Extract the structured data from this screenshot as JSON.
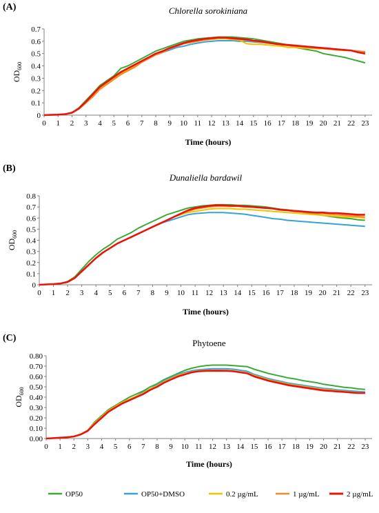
{
  "figure": {
    "colors": {
      "OP50": "#3aaa35",
      "OP50+DMSO": "#36a2dc",
      "0.2 µg/mL": "#f2c200",
      "1 µg/mL": "#f58a2a",
      "2 µg/mL": "#e8140c"
    },
    "legend": [
      "OP50",
      "OP50+DMSO",
      "0.2 µg/mL",
      "1 µg/mL",
      "2 µg/mL"
    ]
  },
  "chart_data": [
    {
      "type": "line",
      "panel": "(A)",
      "title": "Chlorella sorokiniana",
      "xlabel": "Time (hours)",
      "ylabel": "OD600",
      "x_ticks": [
        0,
        1,
        2,
        3,
        4,
        5,
        6,
        7,
        8,
        9,
        10,
        11,
        12,
        13,
        14,
        15,
        16,
        17,
        18,
        19,
        20,
        21,
        22,
        23
      ],
      "y_ticks": [
        "0",
        "0.1",
        "0.2",
        "0.3",
        "0.4",
        "0.5",
        "0.6",
        "0.7"
      ],
      "xlim": [
        0,
        23.5
      ],
      "ylim": [
        0,
        0.7
      ],
      "x": [
        0,
        0.5,
        1,
        1.5,
        2,
        2.5,
        3,
        3.5,
        4,
        4.5,
        5,
        5.5,
        6,
        6.5,
        7,
        7.5,
        8,
        8.5,
        9,
        9.5,
        10,
        10.5,
        11,
        11.5,
        12,
        12.5,
        13,
        13.5,
        14,
        14.5,
        15,
        15.5,
        16,
        16.5,
        17,
        17.5,
        18,
        18.5,
        19,
        19.5,
        20,
        20.5,
        21,
        21.5,
        22,
        22.5,
        23
      ],
      "series": [
        {
          "name": "OP50",
          "values": [
            0,
            0.002,
            0.004,
            0.008,
            0.02,
            0.06,
            0.12,
            0.18,
            0.24,
            0.28,
            0.32,
            0.38,
            0.4,
            0.43,
            0.46,
            0.49,
            0.52,
            0.54,
            0.56,
            0.58,
            0.6,
            0.61,
            0.62,
            0.625,
            0.63,
            0.635,
            0.635,
            0.635,
            0.63,
            0.625,
            0.62,
            0.61,
            0.6,
            0.59,
            0.58,
            0.57,
            0.55,
            0.54,
            0.53,
            0.52,
            0.5,
            0.49,
            0.48,
            0.47,
            0.455,
            0.44,
            0.425
          ]
        },
        {
          "name": "OP50+DMSO",
          "values": [
            0,
            0.002,
            0.004,
            0.008,
            0.02,
            0.055,
            0.11,
            0.17,
            0.23,
            0.27,
            0.31,
            0.35,
            0.37,
            0.4,
            0.43,
            0.46,
            0.49,
            0.51,
            0.53,
            0.55,
            0.56,
            0.575,
            0.585,
            0.595,
            0.6,
            0.605,
            0.605,
            0.605,
            0.6,
            0.6,
            0.595,
            0.59,
            0.585,
            0.58,
            0.575,
            0.57,
            0.565,
            0.56,
            0.555,
            0.55,
            0.545,
            0.54,
            0.535,
            0.53,
            0.525,
            0.52,
            0.515
          ]
        },
        {
          "name": "0.2 µg/mL",
          "values": [
            0,
            0.002,
            0.004,
            0.008,
            0.018,
            0.05,
            0.1,
            0.16,
            0.22,
            0.26,
            0.3,
            0.34,
            0.37,
            0.4,
            0.44,
            0.47,
            0.5,
            0.52,
            0.54,
            0.56,
            0.58,
            0.59,
            0.6,
            0.61,
            0.615,
            0.62,
            0.62,
            0.615,
            0.61,
            0.58,
            0.575,
            0.575,
            0.57,
            0.565,
            0.56,
            0.55,
            0.55,
            0.545,
            0.545,
            0.54,
            0.54,
            0.535,
            0.53,
            0.525,
            0.525,
            0.52,
            0.51
          ]
        },
        {
          "name": "1 µg/mL",
          "values": [
            0,
            0.002,
            0.004,
            0.008,
            0.018,
            0.05,
            0.1,
            0.15,
            0.21,
            0.25,
            0.29,
            0.33,
            0.36,
            0.39,
            0.43,
            0.46,
            0.49,
            0.51,
            0.54,
            0.56,
            0.58,
            0.59,
            0.6,
            0.61,
            0.62,
            0.625,
            0.625,
            0.62,
            0.615,
            0.61,
            0.6,
            0.595,
            0.585,
            0.58,
            0.57,
            0.565,
            0.56,
            0.555,
            0.55,
            0.545,
            0.54,
            0.535,
            0.53,
            0.53,
            0.525,
            0.52,
            0.515
          ]
        },
        {
          "name": "2 µg/mL",
          "values": [
            0,
            0.002,
            0.004,
            0.008,
            0.02,
            0.055,
            0.11,
            0.17,
            0.23,
            0.27,
            0.31,
            0.35,
            0.38,
            0.41,
            0.44,
            0.47,
            0.5,
            0.52,
            0.545,
            0.565,
            0.585,
            0.6,
            0.61,
            0.62,
            0.625,
            0.63,
            0.63,
            0.625,
            0.62,
            0.615,
            0.605,
            0.6,
            0.59,
            0.58,
            0.575,
            0.57,
            0.565,
            0.56,
            0.555,
            0.55,
            0.545,
            0.54,
            0.535,
            0.53,
            0.525,
            0.51,
            0.5
          ]
        }
      ]
    },
    {
      "type": "line",
      "panel": "(B)",
      "title": "Dunaliella bardawil",
      "xlabel": "Time (hours)",
      "ylabel": "OD600",
      "x_ticks": [
        0,
        1,
        2,
        3,
        4,
        5,
        6,
        7,
        8,
        9,
        10,
        11,
        12,
        13,
        14,
        15,
        16,
        17,
        18,
        19,
        20,
        21,
        22,
        23
      ],
      "y_ticks": [
        "0",
        "0.1",
        "0.2",
        "0.3",
        "0.4",
        "0.5",
        "0.6",
        "0.7",
        "0.8"
      ],
      "xlim": [
        0,
        23.5
      ],
      "ylim": [
        0,
        0.8
      ],
      "x": [
        0,
        0.5,
        1,
        1.5,
        2,
        2.5,
        3,
        3.5,
        4,
        4.5,
        5,
        5.5,
        6,
        6.5,
        7,
        7.5,
        8,
        8.5,
        9,
        9.5,
        10,
        10.5,
        11,
        11.5,
        12,
        12.5,
        13,
        13.5,
        14,
        14.5,
        15,
        15.5,
        16,
        16.5,
        17,
        17.5,
        18,
        18.5,
        19,
        19.5,
        20,
        20.5,
        21,
        21.5,
        22,
        22.5,
        23
      ],
      "series": [
        {
          "name": "OP50",
          "values": [
            0,
            0.003,
            0.006,
            0.012,
            0.03,
            0.07,
            0.14,
            0.21,
            0.27,
            0.32,
            0.36,
            0.41,
            0.44,
            0.47,
            0.51,
            0.54,
            0.57,
            0.6,
            0.63,
            0.65,
            0.67,
            0.69,
            0.7,
            0.71,
            0.715,
            0.72,
            0.72,
            0.72,
            0.715,
            0.715,
            0.71,
            0.705,
            0.7,
            0.69,
            0.68,
            0.675,
            0.665,
            0.655,
            0.645,
            0.635,
            0.625,
            0.615,
            0.605,
            0.6,
            0.595,
            0.585,
            0.58
          ]
        },
        {
          "name": "OP50+DMSO",
          "values": [
            0,
            0.003,
            0.006,
            0.012,
            0.025,
            0.06,
            0.12,
            0.18,
            0.24,
            0.29,
            0.33,
            0.37,
            0.4,
            0.43,
            0.46,
            0.49,
            0.52,
            0.55,
            0.57,
            0.59,
            0.61,
            0.63,
            0.64,
            0.645,
            0.65,
            0.65,
            0.65,
            0.645,
            0.64,
            0.635,
            0.625,
            0.615,
            0.605,
            0.595,
            0.59,
            0.58,
            0.575,
            0.57,
            0.565,
            0.56,
            0.555,
            0.55,
            0.545,
            0.54,
            0.535,
            0.53,
            0.525
          ]
        },
        {
          "name": "0.2 µg/mL",
          "values": [
            0,
            0.003,
            0.006,
            0.012,
            0.025,
            0.06,
            0.12,
            0.18,
            0.24,
            0.29,
            0.33,
            0.37,
            0.4,
            0.43,
            0.46,
            0.49,
            0.52,
            0.55,
            0.58,
            0.61,
            0.63,
            0.65,
            0.66,
            0.67,
            0.68,
            0.685,
            0.685,
            0.685,
            0.68,
            0.68,
            0.675,
            0.67,
            0.665,
            0.66,
            0.655,
            0.65,
            0.645,
            0.64,
            0.635,
            0.63,
            0.625,
            0.62,
            0.615,
            0.61,
            0.61,
            0.605,
            0.6
          ]
        },
        {
          "name": "1 µg/mL",
          "values": [
            0,
            0.003,
            0.006,
            0.012,
            0.025,
            0.06,
            0.12,
            0.18,
            0.24,
            0.29,
            0.33,
            0.37,
            0.4,
            0.43,
            0.46,
            0.49,
            0.52,
            0.55,
            0.58,
            0.61,
            0.64,
            0.66,
            0.68,
            0.69,
            0.7,
            0.705,
            0.705,
            0.705,
            0.705,
            0.7,
            0.7,
            0.695,
            0.69,
            0.685,
            0.675,
            0.67,
            0.66,
            0.655,
            0.65,
            0.645,
            0.64,
            0.635,
            0.63,
            0.625,
            0.62,
            0.615,
            0.61
          ]
        },
        {
          "name": "2 µg/mL",
          "values": [
            0,
            0.003,
            0.006,
            0.012,
            0.025,
            0.06,
            0.12,
            0.18,
            0.24,
            0.29,
            0.33,
            0.37,
            0.4,
            0.43,
            0.46,
            0.49,
            0.52,
            0.55,
            0.58,
            0.61,
            0.64,
            0.67,
            0.69,
            0.7,
            0.71,
            0.715,
            0.715,
            0.71,
            0.71,
            0.705,
            0.7,
            0.695,
            0.69,
            0.685,
            0.675,
            0.67,
            0.665,
            0.66,
            0.655,
            0.65,
            0.65,
            0.645,
            0.645,
            0.64,
            0.635,
            0.63,
            0.63
          ]
        }
      ]
    },
    {
      "type": "line",
      "panel": "(C)",
      "title": "Phytoene",
      "xlabel": "Time (hours)",
      "ylabel": "OD600",
      "x_ticks": [
        0,
        1,
        2,
        3,
        4,
        5,
        6,
        7,
        8,
        9,
        10,
        11,
        12,
        13,
        14,
        15,
        16,
        17,
        18,
        19,
        20,
        21,
        22,
        23
      ],
      "y_ticks": [
        "0.00",
        "0.10",
        "0.20",
        "0.30",
        "0.40",
        "0.50",
        "0.60",
        "0.70",
        "0.80"
      ],
      "xlim": [
        0,
        23.5
      ],
      "ylim": [
        0,
        0.8
      ],
      "x": [
        0,
        0.5,
        1,
        1.5,
        2,
        2.5,
        3,
        3.5,
        4,
        4.5,
        5,
        5.5,
        6,
        6.5,
        7,
        7.5,
        8,
        8.5,
        9,
        9.5,
        10,
        10.5,
        11,
        11.5,
        12,
        12.5,
        13,
        13.5,
        14,
        14.5,
        15,
        15.5,
        16,
        16.5,
        17,
        17.5,
        18,
        18.5,
        19,
        19.5,
        20,
        20.5,
        21,
        21.5,
        22,
        22.5,
        23
      ],
      "series": [
        {
          "name": "OP50",
          "values": [
            0,
            0.004,
            0.008,
            0.012,
            0.02,
            0.04,
            0.08,
            0.16,
            0.22,
            0.28,
            0.32,
            0.36,
            0.4,
            0.43,
            0.46,
            0.5,
            0.53,
            0.57,
            0.6,
            0.63,
            0.66,
            0.68,
            0.695,
            0.705,
            0.71,
            0.71,
            0.71,
            0.705,
            0.7,
            0.695,
            0.67,
            0.65,
            0.63,
            0.615,
            0.6,
            0.585,
            0.575,
            0.56,
            0.55,
            0.54,
            0.525,
            0.515,
            0.505,
            0.495,
            0.49,
            0.48,
            0.475
          ]
        },
        {
          "name": "OP50+DMSO",
          "values": [
            0,
            0.004,
            0.008,
            0.012,
            0.02,
            0.04,
            0.08,
            0.15,
            0.21,
            0.27,
            0.31,
            0.35,
            0.38,
            0.41,
            0.45,
            0.48,
            0.52,
            0.56,
            0.59,
            0.62,
            0.64,
            0.655,
            0.665,
            0.67,
            0.675,
            0.675,
            0.675,
            0.67,
            0.66,
            0.65,
            0.62,
            0.6,
            0.58,
            0.565,
            0.55,
            0.535,
            0.525,
            0.515,
            0.505,
            0.495,
            0.485,
            0.48,
            0.47,
            0.465,
            0.46,
            0.455,
            0.45
          ]
        },
        {
          "name": "0.2 µg/mL",
          "values": [
            0,
            0.004,
            0.008,
            0.012,
            0.02,
            0.04,
            0.08,
            0.15,
            0.21,
            0.27,
            0.31,
            0.35,
            0.38,
            0.41,
            0.44,
            0.48,
            0.51,
            0.55,
            0.58,
            0.61,
            0.63,
            0.645,
            0.655,
            0.66,
            0.66,
            0.66,
            0.66,
            0.655,
            0.645,
            0.635,
            0.61,
            0.59,
            0.57,
            0.555,
            0.54,
            0.525,
            0.515,
            0.505,
            0.495,
            0.485,
            0.475,
            0.47,
            0.46,
            0.455,
            0.45,
            0.445,
            0.44
          ]
        },
        {
          "name": "1 µg/mL",
          "values": [
            0,
            0.004,
            0.008,
            0.012,
            0.02,
            0.04,
            0.075,
            0.14,
            0.2,
            0.26,
            0.3,
            0.34,
            0.37,
            0.4,
            0.43,
            0.47,
            0.5,
            0.54,
            0.57,
            0.6,
            0.62,
            0.64,
            0.65,
            0.655,
            0.66,
            0.66,
            0.655,
            0.65,
            0.64,
            0.63,
            0.605,
            0.585,
            0.565,
            0.55,
            0.535,
            0.52,
            0.51,
            0.5,
            0.49,
            0.48,
            0.47,
            0.465,
            0.455,
            0.45,
            0.445,
            0.44,
            0.44
          ]
        },
        {
          "name": "2 µg/mL",
          "values": [
            0,
            0.004,
            0.008,
            0.012,
            0.02,
            0.04,
            0.075,
            0.14,
            0.2,
            0.26,
            0.3,
            0.34,
            0.37,
            0.4,
            0.43,
            0.47,
            0.5,
            0.54,
            0.57,
            0.6,
            0.62,
            0.64,
            0.65,
            0.655,
            0.655,
            0.655,
            0.655,
            0.65,
            0.64,
            0.63,
            0.6,
            0.58,
            0.56,
            0.545,
            0.53,
            0.515,
            0.505,
            0.495,
            0.485,
            0.475,
            0.465,
            0.46,
            0.455,
            0.45,
            0.445,
            0.44,
            0.44
          ]
        }
      ]
    }
  ]
}
